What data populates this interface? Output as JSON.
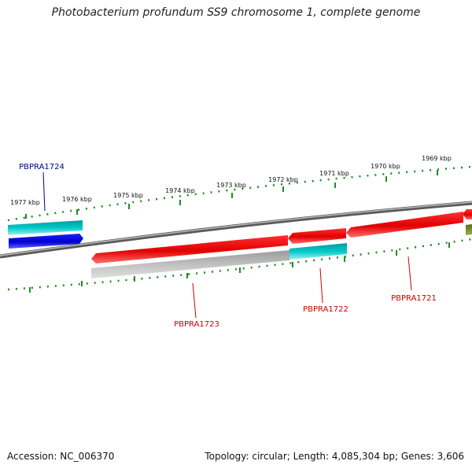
{
  "title": "Photobacterium profundum SS9 chromosome 1, complete genome",
  "footer": {
    "accession": "Accession: NC_006370",
    "summary": "Topology: circular; Length: 4,085,304 bp; Genes: 3,606"
  },
  "ruler": {
    "labels": [
      "1977 kbp",
      "1976 kbp",
      "1975 kbp",
      "1974 kbp",
      "1973 kbp",
      "1972 kbp",
      "1971 kbp",
      "1970 kbp",
      "1969 kbp"
    ]
  },
  "genes": [
    {
      "name": "PBPRA1724",
      "color": "#00008b"
    },
    {
      "name": "PBPRA1723",
      "color": "#cc0000"
    },
    {
      "name": "PBPRA1722",
      "color": "#cc0000"
    },
    {
      "name": "PBPRA1721",
      "color": "#cc0000"
    }
  ],
  "colors": {
    "forward_cds": "#0000ee",
    "reverse_cds": "#ee0000",
    "rna": "#00c8c8",
    "gray": "#b0b0b0",
    "ticks": "#228b22",
    "backbone": "#808080",
    "olive": "#6b8e23"
  }
}
